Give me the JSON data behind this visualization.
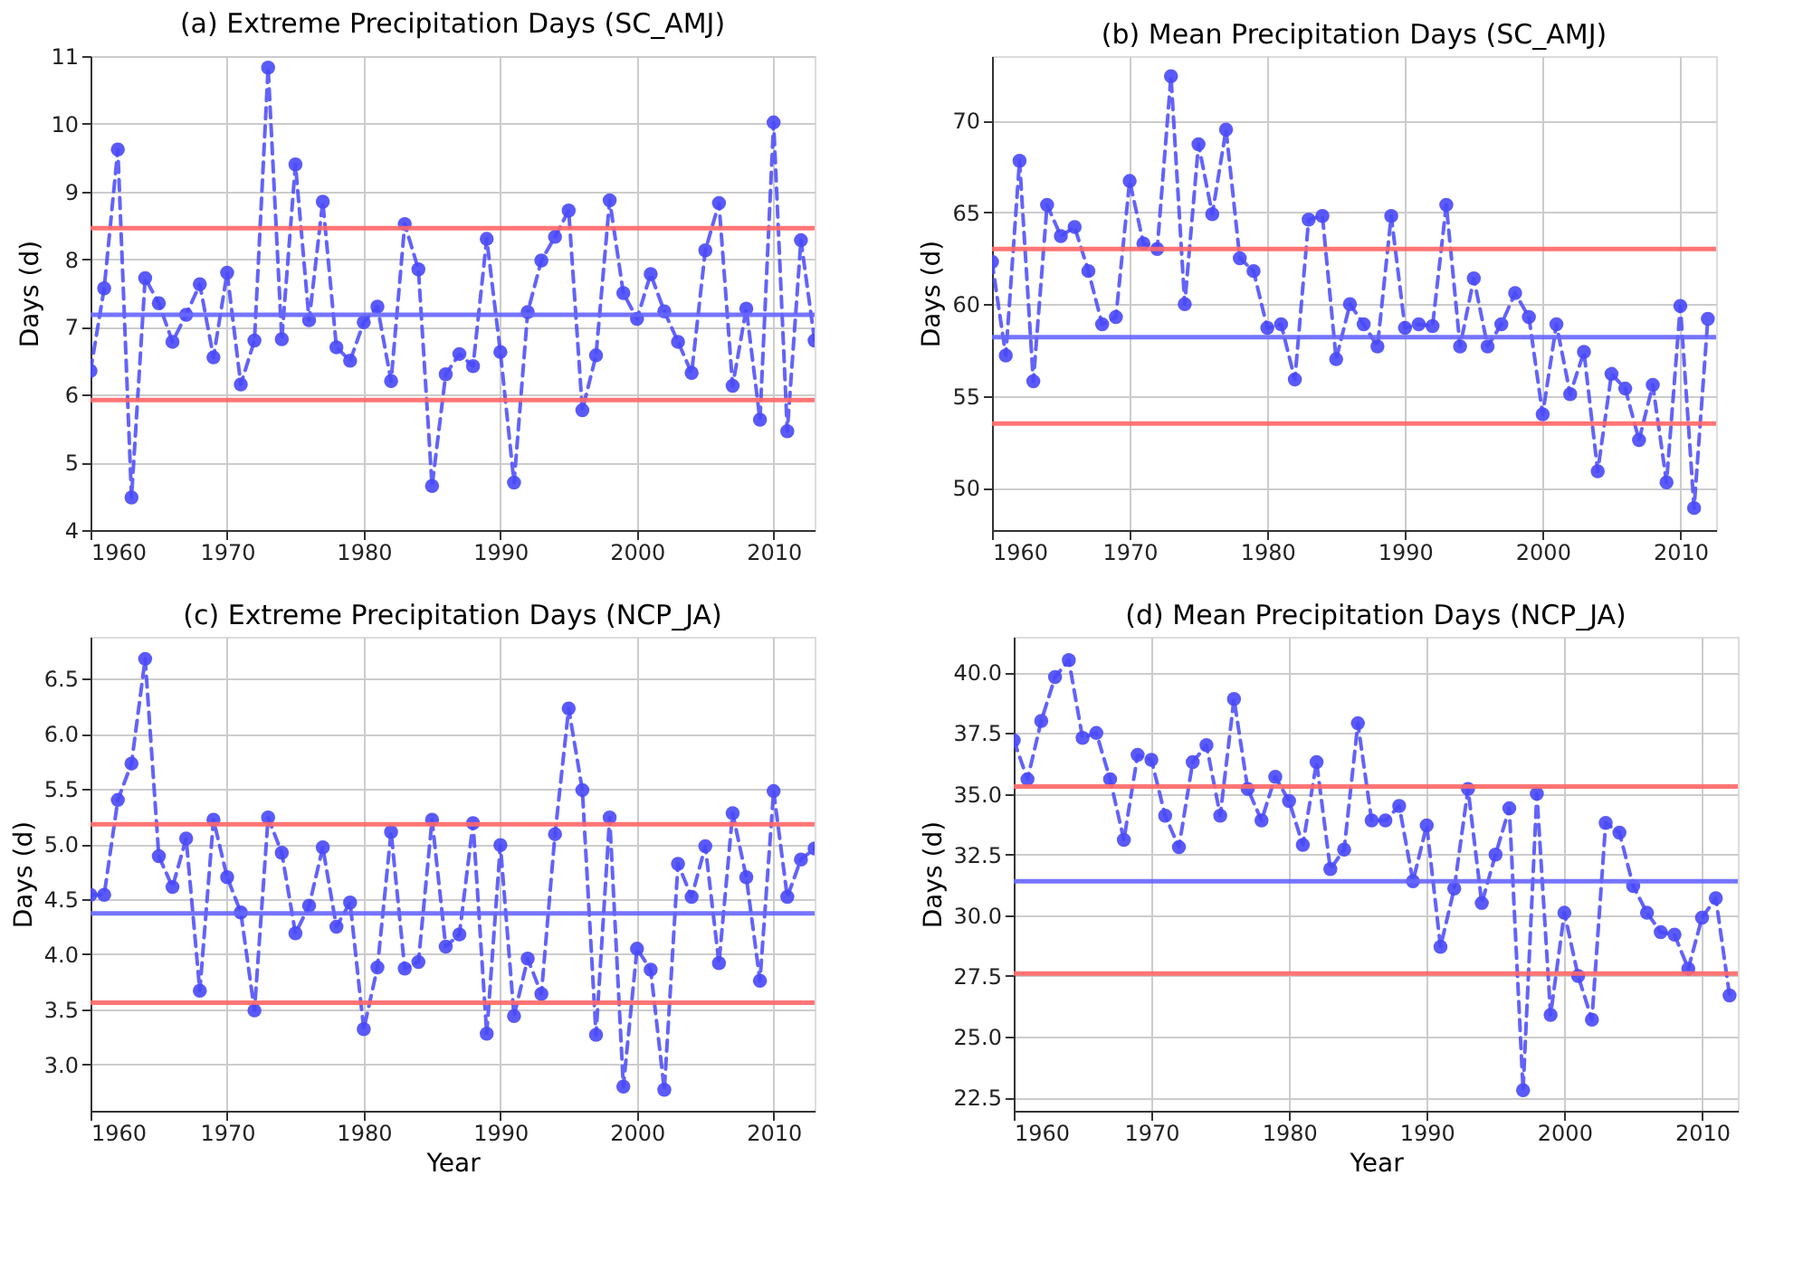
{
  "chart_data": [
    {
      "type": "line",
      "title": "(a)   Extreme Precipitation Days (SC_AMJ)",
      "ylabel": "Days (d)",
      "marker": "circle",
      "line_style": "dashed",
      "grid": true,
      "xlim": [
        1960,
        2013
      ],
      "xticks": [
        1960,
        1970,
        1980,
        1990,
        2000,
        2010
      ],
      "ylim": [
        4,
        11
      ],
      "yticks": [
        4,
        5,
        6,
        7,
        8,
        9,
        10,
        11
      ],
      "x": [
        1960,
        1961,
        1962,
        1963,
        1964,
        1965,
        1966,
        1967,
        1968,
        1969,
        1970,
        1971,
        1972,
        1973,
        1974,
        1975,
        1976,
        1977,
        1978,
        1979,
        1980,
        1981,
        1982,
        1983,
        1984,
        1985,
        1986,
        1987,
        1988,
        1989,
        1990,
        1991,
        1992,
        1993,
        1994,
        1995,
        1996,
        1997,
        1998,
        1999,
        2000,
        2001,
        2002,
        2003,
        2004,
        2005,
        2006,
        2007,
        2008,
        2009,
        2010,
        2011,
        2012,
        2013
      ],
      "series": [
        {
          "color": "#4848f8",
          "values": [
            6.35,
            7.57,
            9.62,
            4.48,
            7.72,
            7.35,
            6.78,
            7.18,
            7.63,
            6.55,
            7.8,
            6.15,
            6.8,
            10.83,
            6.82,
            9.4,
            7.1,
            8.85,
            6.7,
            6.5,
            7.07,
            7.3,
            6.2,
            8.52,
            7.85,
            4.65,
            6.3,
            6.6,
            6.42,
            8.3,
            6.63,
            4.7,
            7.22,
            7.98,
            8.33,
            8.72,
            5.77,
            6.58,
            8.87,
            7.5,
            7.12,
            7.78,
            7.23,
            6.78,
            6.32,
            8.13,
            8.83,
            6.13,
            7.27,
            5.63,
            10.02,
            5.46,
            8.28,
            6.8
          ]
        }
      ],
      "ref_lines": [
        {
          "axis": "y",
          "value": 8.46,
          "color": "#ff6666"
        },
        {
          "axis": "y",
          "value": 7.18,
          "color": "#6666ff"
        },
        {
          "axis": "y",
          "value": 5.92,
          "color": "#ff6666"
        }
      ]
    },
    {
      "type": "line",
      "title": "(b)   Mean Precipitation Days (SC_AMJ)",
      "ylabel": "Days (d)",
      "marker": "circle",
      "line_style": "dashed",
      "grid": true,
      "xlim": [
        1960,
        2012.6
      ],
      "xticks": [
        1960,
        1970,
        1980,
        1990,
        2000,
        2010
      ],
      "ylim": [
        47.7,
        73.5
      ],
      "yticks": [
        50,
        55,
        60,
        65,
        70
      ],
      "x": [
        1960,
        1961,
        1962,
        1963,
        1964,
        1965,
        1966,
        1967,
        1968,
        1969,
        1970,
        1971,
        1972,
        1973,
        1974,
        1975,
        1976,
        1977,
        1978,
        1979,
        1980,
        1981,
        1982,
        1983,
        1984,
        1985,
        1986,
        1987,
        1988,
        1989,
        1990,
        1991,
        1992,
        1993,
        1994,
        1995,
        1996,
        1997,
        1998,
        1999,
        2000,
        2001,
        2002,
        2003,
        2004,
        2005,
        2006,
        2007,
        2008,
        2009,
        2010,
        2011,
        2012
      ],
      "series": [
        {
          "color": "#4848f8",
          "values": [
            62.3,
            57.2,
            67.8,
            55.8,
            65.4,
            63.7,
            64.2,
            61.8,
            58.9,
            59.3,
            66.7,
            63.3,
            63.0,
            72.4,
            60.0,
            68.7,
            64.9,
            69.5,
            62.5,
            61.8,
            58.7,
            58.9,
            55.9,
            64.6,
            64.8,
            57.0,
            60.0,
            58.9,
            57.7,
            64.8,
            58.7,
            58.9,
            58.8,
            65.4,
            57.7,
            61.4,
            57.7,
            58.9,
            60.6,
            59.3,
            54.0,
            58.9,
            55.1,
            57.4,
            50.9,
            56.2,
            55.4,
            52.6,
            55.6,
            50.3,
            59.9,
            48.9,
            59.2
          ]
        }
      ],
      "ref_lines": [
        {
          "axis": "y",
          "value": 63.0,
          "color": "#ff6666"
        },
        {
          "axis": "y",
          "value": 58.2,
          "color": "#6666ff"
        },
        {
          "axis": "y",
          "value": 53.5,
          "color": "#ff6666"
        }
      ]
    },
    {
      "type": "line",
      "title": "(c)   Extreme Precipitation Days (NCP_JA)",
      "xlabel": "Year",
      "ylabel": "Days (d)",
      "marker": "circle",
      "line_style": "dashed",
      "grid": true,
      "xlim": [
        1960,
        2013
      ],
      "xticks": [
        1960,
        1970,
        1980,
        1990,
        2000,
        2010
      ],
      "ylim": [
        2.58,
        6.88
      ],
      "yticks": [
        {
          "value": 3.0,
          "label": "3.0"
        },
        3.5,
        {
          "value": 4.0,
          "label": "4.0"
        },
        4.5,
        {
          "value": 5.0,
          "label": "5.0"
        },
        5.5,
        {
          "value": 6.0,
          "label": "6.0"
        },
        6.5
      ],
      "x": [
        1960,
        1961,
        1962,
        1963,
        1964,
        1965,
        1966,
        1967,
        1968,
        1969,
        1970,
        1971,
        1972,
        1973,
        1974,
        1975,
        1976,
        1977,
        1978,
        1979,
        1980,
        1981,
        1982,
        1983,
        1984,
        1985,
        1986,
        1987,
        1988,
        1989,
        1990,
        1991,
        1992,
        1993,
        1994,
        1995,
        1996,
        1997,
        1998,
        1999,
        2000,
        2001,
        2002,
        2003,
        2004,
        2005,
        2006,
        2007,
        2008,
        2009,
        2010,
        2011,
        2012,
        2013
      ],
      "series": [
        {
          "color": "#4848f8",
          "values": [
            4.54,
            4.54,
            5.4,
            5.73,
            6.68,
            4.89,
            4.61,
            5.05,
            3.67,
            5.22,
            4.7,
            4.38,
            3.49,
            5.24,
            4.92,
            4.19,
            4.44,
            4.97,
            4.25,
            4.47,
            3.32,
            3.88,
            5.11,
            3.87,
            3.93,
            5.22,
            4.07,
            4.18,
            5.19,
            3.28,
            4.99,
            3.44,
            3.96,
            3.64,
            5.09,
            6.23,
            5.49,
            3.27,
            5.24,
            2.8,
            4.05,
            3.86,
            2.77,
            4.82,
            4.52,
            4.98,
            3.92,
            5.28,
            4.7,
            3.76,
            5.48,
            4.52,
            4.86,
            4.96
          ]
        }
      ],
      "ref_lines": [
        {
          "axis": "y",
          "value": 5.18,
          "color": "#ff6666"
        },
        {
          "axis": "y",
          "value": 4.37,
          "color": "#6666ff"
        },
        {
          "axis": "y",
          "value": 3.56,
          "color": "#ff6666"
        }
      ]
    },
    {
      "type": "line",
      "title": "(d)   Mean Precipitation Days (NCP_JA)",
      "xlabel": "Year",
      "ylabel": "Days (d)",
      "marker": "circle",
      "line_style": "dashed",
      "grid": true,
      "xlim": [
        1960,
        2012.6
      ],
      "xticks": [
        1960,
        1970,
        1980,
        1990,
        2000,
        2010
      ],
      "ylim": [
        21.95,
        41.46
      ],
      "yticks": [
        22.5,
        {
          "value": 25.0,
          "label": "25.0"
        },
        27.5,
        {
          "value": 30.0,
          "label": "30.0"
        },
        32.5,
        {
          "value": 35.0,
          "label": "35.0"
        },
        37.5,
        {
          "value": 40.0,
          "label": "40.0"
        }
      ],
      "x": [
        1960,
        1961,
        1962,
        1963,
        1964,
        1965,
        1966,
        1967,
        1968,
        1969,
        1970,
        1971,
        1972,
        1973,
        1974,
        1975,
        1976,
        1977,
        1978,
        1979,
        1980,
        1981,
        1982,
        1983,
        1984,
        1985,
        1986,
        1987,
        1988,
        1989,
        1990,
        1991,
        1992,
        1993,
        1994,
        1995,
        1996,
        1997,
        1998,
        1999,
        2000,
        2001,
        2002,
        2003,
        2004,
        2005,
        2006,
        2007,
        2008,
        2009,
        2010,
        2011,
        2012
      ],
      "series": [
        {
          "color": "#4848f8",
          "values": [
            37.2,
            35.6,
            38.0,
            39.8,
            40.5,
            37.3,
            37.5,
            35.6,
            33.1,
            36.6,
            36.4,
            34.1,
            32.8,
            36.3,
            37.0,
            34.1,
            38.9,
            35.2,
            33.9,
            35.7,
            34.7,
            32.9,
            36.3,
            31.9,
            32.7,
            37.9,
            33.9,
            33.9,
            34.5,
            31.4,
            33.7,
            28.7,
            31.1,
            35.2,
            30.5,
            32.5,
            34.4,
            22.8,
            35.0,
            25.9,
            30.1,
            27.5,
            25.7,
            33.8,
            33.4,
            31.2,
            30.1,
            29.3,
            29.2,
            27.8,
            29.9,
            30.7,
            26.7
          ]
        }
      ],
      "ref_lines": [
        {
          "axis": "y",
          "value": 35.3,
          "color": "#ff6666"
        },
        {
          "axis": "y",
          "value": 31.4,
          "color": "#6666ff"
        },
        {
          "axis": "y",
          "value": 27.6,
          "color": "#ff6666"
        }
      ]
    }
  ]
}
